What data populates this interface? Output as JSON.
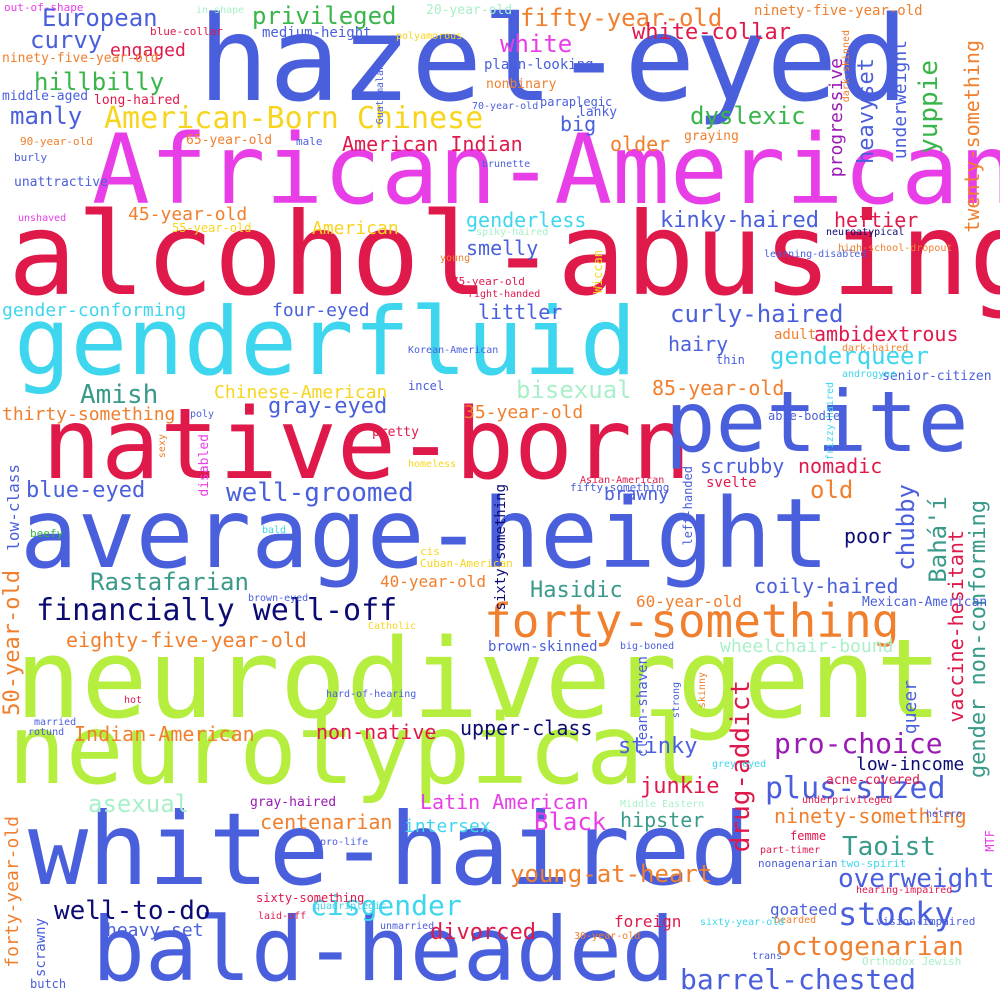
{
  "colors": {
    "blue": "#4a5fdc",
    "magenta": "#e83ee8",
    "crimson": "#e0194b",
    "cyan": "#3ed6ee",
    "lime": "#b5ee3e",
    "navy": "#0b0b73",
    "orange": "#f07f2e",
    "green": "#3ab54a",
    "teal": "#3a9a8a",
    "purple": "#9a1ab5",
    "yellow": "#f7d51e",
    "mint": "#a9f0c8",
    "pink": "#f36ba8",
    "background": "#ffffff"
  },
  "words": [
    "hazel-eyed",
    "African-American",
    "alcohol-abusing",
    "genderfluid",
    "native-born",
    "petite",
    "average-height",
    "neurodivergent",
    "neurotypical",
    "white-haired",
    "bald-headed",
    "forty-something",
    "financially well-off",
    "drug-addict",
    "pro-choice",
    "plus-sized",
    "barrel-chested",
    "octogenarian",
    "stocky",
    "young-at-heart",
    "cisgender",
    "well-to-do",
    "overweight",
    "European",
    "privileged",
    "fifty-year-old",
    "white-collar",
    "curvy",
    "white",
    "engaged",
    "hillbilly",
    "yuppie",
    "heavyset",
    "progressive",
    "underweight",
    "twenty-something",
    "manly",
    "American-Born Chinese",
    "dyslexic",
    "big",
    "older",
    "American Indian",
    "45-year-old",
    "genderless",
    "kinky-haired",
    "heftier",
    "American",
    "smelly",
    "curly-haired",
    "littler",
    "hairy",
    "genderqueer",
    "ambidextrous",
    "Amish",
    "bisexual",
    "85-year-old",
    "gray-eyed",
    "35-year-old",
    "Chinese-American",
    "thirty-something",
    "four-eyed",
    "gender-conforming",
    "blue-eyed",
    "well-groomed",
    "chubby",
    "Bahá'í",
    "scrubby",
    "nomadic",
    "old",
    "poor",
    "Rastafarian",
    "Hasidic",
    "coily-haired",
    "eighty-five-year-old",
    "60-year-old",
    "40-year-old",
    "50-year-old",
    "vaccine-hesitant",
    "gender non-conforming",
    "low-income",
    "upper-class",
    "non-native",
    "Indian-American",
    "stinky",
    "junkie",
    "asexual",
    "Latin American",
    "Black",
    "ninety-something",
    "Taoist",
    "hipster",
    "centenarian",
    "intersex",
    "brawny",
    "divorced",
    "heavy-set",
    "foreign",
    "goateed",
    "forty-year-old",
    "queer",
    "wheelchair-bound",
    "brown-skinned",
    "clean-shaven",
    "adult",
    "low-class",
    "out-of-shape",
    "ninety-five-year-old",
    "middle-aged",
    "long-haired",
    "blue-collar",
    "medium-height",
    "plain-looking",
    "nonbinary",
    "70-year-old",
    "paraplegic",
    "lanky",
    "graying",
    "90-year-old",
    "65-year-old",
    "male",
    "burly",
    "unattractive",
    "brunette",
    "unshaved",
    "55-year-old",
    "neuroatypical",
    "high-school-dropout",
    "young",
    "75-year-old",
    "right-handed",
    "spiky-haired",
    "learning-disabled",
    "Wiccan",
    "Korean-American",
    "thin",
    "incel",
    "dark-haired",
    "senior-citizen",
    "frizzy-haired",
    "androgyne",
    "poly",
    "sexy",
    "pretty",
    "homeless",
    "disabled",
    "Asian-American",
    "fifty-something",
    "bald",
    "cis",
    "Cuban-American",
    "able-bodied",
    "svelte",
    "left-handed",
    "brown-eyed",
    "Catholic",
    "Mexican-American",
    "big-boned",
    "strong",
    "skinny",
    "hard-of-hearing",
    "hot",
    "married",
    "rotund",
    "beefy",
    "underprivileged",
    "gray-haired",
    "pro-life",
    "grey-eyed",
    "femme",
    "part-timer",
    "nonagenarian",
    "two-spirit",
    "hetero",
    "MTF",
    "Middle Eastern",
    "hearing-impaired",
    "sixty-something",
    "laid-off",
    "unmarried",
    "bearded",
    "30-year-old",
    "sixty-year-old",
    "trans",
    "Orthodox Jewish",
    "vision-impaired",
    "acne-covered",
    "quadriplegic",
    "butch",
    "scrawny",
    "in-shape",
    "gay",
    "ninety-five-year-old",
    "20-year-old",
    "polyamorous",
    "Guatemalan",
    "cute",
    "dark-skinned",
    "fifty-five-year-old",
    "sixty-something",
    "well-off",
    "butch"
  ]
}
